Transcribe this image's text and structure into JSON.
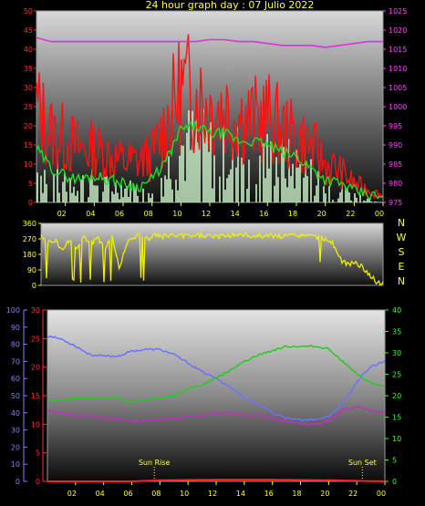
{
  "title": "24 hour graph day : 07 Julio 2022",
  "colors": {
    "background": "#000000",
    "wind_gust": "#ff1010",
    "wind_avg": "#22dd22",
    "rain": "#c8f0c8",
    "pressure": "#e030e0",
    "direction": "#f0f000",
    "humidity": "#7070ff",
    "temperature": "#22cc22",
    "dewpoint": "#c030c0",
    "solar": "#ff2020",
    "sun_marker": "#ffff40",
    "frame": "#9a9a9a",
    "tick_red": "#ff3030",
    "tick_magenta": "#ff40ff",
    "tick_yellow": "#ffff20",
    "tick_blue": "#8080ff",
    "tick_green": "#30ff30"
  },
  "chart_data": [
    {
      "type": "line",
      "id": "wind",
      "x_ticks": [
        "02",
        "04",
        "06",
        "08",
        "10",
        "12",
        "14",
        "16",
        "18",
        "20",
        "22",
        "00"
      ],
      "left_axis": {
        "ticks": [
          "0",
          "5",
          "10",
          "15",
          "20",
          "25",
          "30",
          "35",
          "40",
          "45",
          "50"
        ],
        "ylim": [
          0,
          50
        ]
      },
      "right_axis": {
        "ticks": [
          "975",
          "980",
          "985",
          "990",
          "995",
          "1000",
          "1005",
          "1010",
          "1015",
          "1020",
          "1025"
        ],
        "ylim": [
          975,
          1025
        ]
      },
      "series": [
        {
          "key": "gust",
          "axis": "left",
          "style": "spiky",
          "x": [
            0,
            1,
            2,
            3,
            4,
            5,
            6,
            7,
            8,
            9,
            10,
            11,
            12,
            13,
            14,
            15,
            16,
            17,
            18,
            19,
            20,
            21,
            22,
            23,
            24
          ],
          "y": [
            30,
            22,
            20,
            17,
            17,
            15,
            13,
            13,
            15,
            25,
            36,
            34,
            30,
            30,
            27,
            26,
            27,
            23,
            20,
            18,
            12,
            10,
            6,
            4,
            2
          ]
        },
        {
          "key": "avg",
          "axis": "left",
          "x": [
            0,
            1,
            2,
            3,
            4,
            5,
            6,
            7,
            8,
            9,
            10,
            11,
            12,
            13,
            14,
            15,
            16,
            17,
            18,
            19,
            20,
            21,
            22,
            23,
            24
          ],
          "y": [
            14,
            9,
            7,
            6,
            7,
            6,
            5,
            4,
            6,
            11,
            19,
            20,
            18,
            18,
            16,
            16,
            15,
            13,
            12,
            9,
            6,
            5,
            3,
            2,
            1
          ]
        },
        {
          "key": "rain",
          "axis": "left",
          "style": "bars",
          "x": [
            0,
            1,
            2,
            3,
            4,
            5,
            6,
            7,
            8,
            9,
            10,
            11,
            12,
            13,
            14,
            15,
            16,
            17,
            18,
            19,
            20,
            21,
            22,
            23,
            24
          ],
          "y": [
            8,
            7,
            6,
            5,
            5,
            4,
            4,
            3,
            4,
            8,
            14,
            15,
            13,
            13,
            12,
            12,
            11,
            10,
            9,
            7,
            4,
            3,
            2,
            1,
            0
          ]
        },
        {
          "key": "pressure",
          "axis": "right",
          "x": [
            0,
            1,
            2,
            3,
            4,
            5,
            6,
            7,
            8,
            9,
            10,
            11,
            12,
            13,
            14,
            15,
            16,
            17,
            18,
            19,
            20,
            21,
            22,
            23,
            24
          ],
          "y": [
            1018,
            1017,
            1017,
            1017,
            1017,
            1017,
            1017,
            1017,
            1017,
            1017,
            1017,
            1017,
            1017.5,
            1017.5,
            1017,
            1017,
            1016.5,
            1016,
            1016,
            1016,
            1015.5,
            1016,
            1016.5,
            1017,
            1017
          ]
        }
      ]
    },
    {
      "type": "line",
      "id": "direction",
      "left_axis": {
        "ticks": [
          "0",
          "90",
          "180",
          "270",
          "360"
        ],
        "ylim": [
          0,
          360
        ]
      },
      "right_labels": [
        "N",
        "W",
        "S",
        "E",
        "N"
      ],
      "series": [
        {
          "key": "direction",
          "axis": "left",
          "style": "jagged",
          "x": [
            0,
            0.5,
            1,
            1.5,
            2,
            2.5,
            3,
            3.5,
            4,
            4.5,
            5,
            5.5,
            6,
            6.5,
            7,
            7.5,
            8,
            8.5,
            9,
            9.5,
            10,
            11,
            12,
            13,
            14,
            15,
            16,
            17,
            18,
            19,
            20,
            20.5,
            21,
            21.5,
            22,
            22.5,
            23,
            23.5,
            24
          ],
          "y": [
            280,
            250,
            260,
            200,
            270,
            210,
            285,
            240,
            275,
            220,
            285,
            90,
            250,
            280,
            295,
            270,
            290,
            285,
            290,
            285,
            285,
            290,
            285,
            290,
            295,
            285,
            290,
            285,
            290,
            285,
            270,
            240,
            150,
            120,
            130,
            110,
            70,
            20,
            10
          ]
        }
      ]
    },
    {
      "type": "line",
      "id": "climate",
      "x_ticks": [
        "02",
        "04",
        "06",
        "08",
        "10",
        "12",
        "14",
        "16",
        "18",
        "20",
        "22",
        "00"
      ],
      "left_axis_outer": {
        "ticks": [
          "0",
          "10",
          "20",
          "30",
          "40",
          "50",
          "60",
          "70",
          "80",
          "90",
          "100"
        ],
        "ylim": [
          0,
          100
        ]
      },
      "left_axis_inner": {
        "ticks": [
          "0",
          "5",
          "10",
          "15",
          "20",
          "25",
          "30"
        ],
        "ylim": [
          0,
          30
        ]
      },
      "right_axis": {
        "ticks": [
          "0",
          "5",
          "10",
          "15",
          "20",
          "25",
          "30",
          "35",
          "40"
        ],
        "ylim": [
          0,
          40
        ]
      },
      "annotations": [
        {
          "text": "Sun Rise",
          "x": 7.6
        },
        {
          "text": "Sun Set",
          "x": 22.4
        }
      ],
      "series": [
        {
          "key": "humidity",
          "axis": "outer",
          "x": [
            0,
            1,
            2,
            3,
            4,
            5,
            6,
            7,
            8,
            9,
            10,
            11,
            12,
            13,
            14,
            15,
            16,
            17,
            18,
            19,
            20,
            21,
            22,
            23,
            24
          ],
          "y": [
            85,
            83,
            79,
            74,
            73,
            73,
            76,
            77,
            77,
            74,
            69,
            64,
            60,
            55,
            49,
            45,
            40,
            37,
            36,
            36,
            38,
            45,
            58,
            67,
            70
          ]
        },
        {
          "key": "temperature",
          "axis": "right",
          "x": [
            0,
            1,
            2,
            3,
            4,
            5,
            6,
            7,
            8,
            9,
            10,
            11,
            12,
            13,
            14,
            15,
            16,
            17,
            18,
            19,
            20,
            21,
            22,
            23,
            24
          ],
          "y": [
            19,
            19,
            19.5,
            19.5,
            19.5,
            19.5,
            18.5,
            19,
            19.5,
            20,
            21.5,
            22.5,
            24,
            26,
            28,
            29.5,
            30.5,
            31.5,
            31.5,
            31.5,
            31,
            28,
            25,
            23,
            22
          ]
        },
        {
          "key": "dewpoint",
          "axis": "inner",
          "x": [
            0,
            1,
            2,
            3,
            4,
            5,
            6,
            7,
            8,
            9,
            10,
            11,
            12,
            13,
            14,
            15,
            16,
            17,
            18,
            19,
            20,
            21,
            22,
            23,
            24
          ],
          "y": [
            12.5,
            12,
            11.5,
            11.5,
            11,
            11,
            10.5,
            10.5,
            11,
            11,
            11.5,
            11.5,
            12,
            12,
            11.5,
            11.5,
            11,
            10.5,
            10,
            10,
            10.5,
            12.5,
            13,
            12.5,
            12
          ]
        },
        {
          "key": "solar",
          "axis": "inner",
          "x": [
            0,
            6,
            8,
            12,
            16,
            20,
            22,
            24
          ],
          "y": [
            0,
            0,
            0.2,
            0.3,
            0.3,
            0.2,
            0.1,
            0
          ]
        }
      ]
    }
  ]
}
